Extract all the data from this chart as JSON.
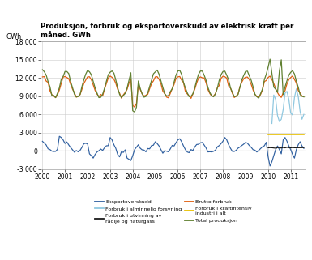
{
  "title": "Produksjon, forbruk og eksportoverskudd av elektrisk kraft per\nmåned. GWh",
  "ylabel": "GWh",
  "ylim": [
    -3000,
    18000
  ],
  "yticks": [
    -3000,
    0,
    3000,
    6000,
    9000,
    12000,
    15000,
    18000
  ],
  "ytick_labels": [
    "-3 000",
    "0",
    "3 000",
    "6 000",
    "9 000",
    "12 000",
    "15 000",
    "18 000"
  ],
  "xtick_labels": [
    "2000",
    "2001",
    "2002",
    "2003",
    "2004",
    "2005",
    "2006",
    "2007",
    "2008",
    "2009",
    "2010",
    "2011"
  ],
  "colors": {
    "eksportoverskudd": "#3060A0",
    "forbruk_utvinning": "#1a1a1a",
    "forbruk_kraftintensiv": "#E8C000",
    "forbruk_alminnelig": "#90C8E0",
    "brutto_forbruk": "#E06010",
    "total_produksjon": "#608030"
  },
  "legend": [
    {
      "label": "Eksportoverskudd",
      "color": "#3060A0"
    },
    {
      "label": "Forbruk i alminnelig forsyning",
      "color": "#90C8E0"
    },
    {
      "label": "Forbruk i utvinning av\nråolje og naturgass",
      "color": "#1a1a1a"
    },
    {
      "label": "Brutto forbruk",
      "color": "#E06010"
    },
    {
      "label": "Forbruk i kraftintensiv\nindustri i alt",
      "color": "#E8C000"
    },
    {
      "label": "Total produksjon",
      "color": "#608030"
    }
  ],
  "background_color": "#ffffff",
  "grid_color": "#cccccc"
}
